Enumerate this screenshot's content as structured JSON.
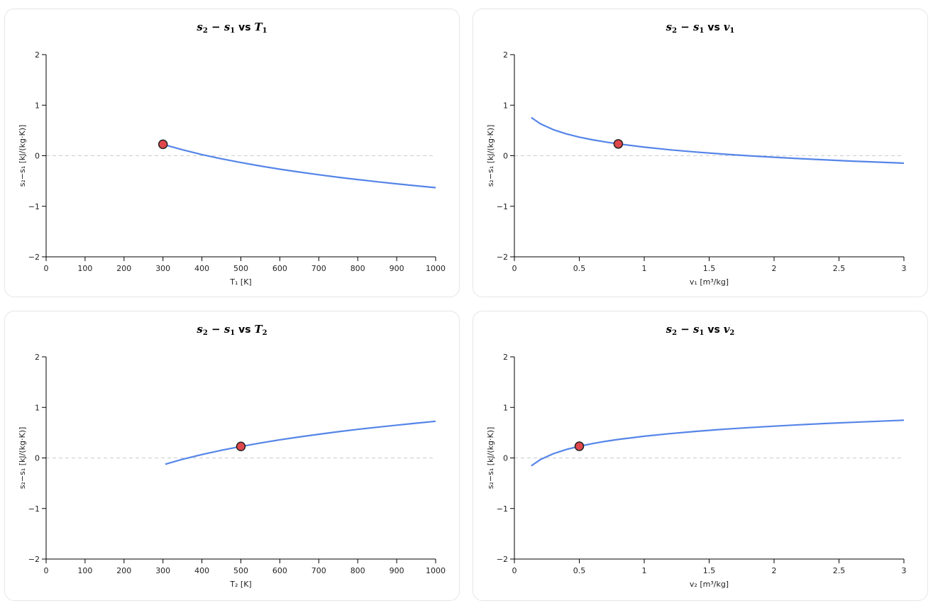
{
  "chart_data": [
    {
      "type": "line",
      "title_parts": [
        "s",
        "2",
        " − ",
        "s",
        "1",
        " vs ",
        "T",
        "1"
      ],
      "xlabel": "T₁ [K]",
      "ylabel": "s₂−s₁ [kJ/(kg·K)]",
      "xlim": [
        0,
        1000
      ],
      "ylim": [
        -2,
        2
      ],
      "xticks": [
        "0",
        "100",
        "200",
        "300",
        "400",
        "500",
        "600",
        "700",
        "800",
        "900",
        "1000"
      ],
      "yticks": [
        "−2",
        "−1",
        "0",
        "1",
        "2"
      ],
      "reference_line_y": 0,
      "series": [
        {
          "color": "#5585e8",
          "x": [
            300,
            350,
            400,
            450,
            500,
            550,
            600,
            650,
            700,
            750,
            800,
            850,
            900,
            950,
            1000
          ],
          "y": [
            0.226,
            0.118,
            0.023,
            -0.061,
            -0.135,
            -0.204,
            -0.266,
            -0.323,
            -0.376,
            -0.426,
            -0.472,
            -0.515,
            -0.556,
            -0.595,
            -0.632
          ]
        }
      ],
      "marker": {
        "x": 300,
        "y": 0.226,
        "color": "#e0474c"
      }
    },
    {
      "type": "line",
      "title_parts": [
        "s",
        "2",
        " − ",
        "s",
        "1",
        " vs ",
        "v",
        "1"
      ],
      "xlabel": "v₁ [m³/kg]",
      "ylabel": "s₂−s₁ [kJ/(kg·K)]",
      "xlim": [
        0,
        3
      ],
      "ylim": [
        -2,
        2
      ],
      "xticks": [
        "0",
        "0.5",
        "1",
        "1.5",
        "2",
        "2.5",
        "3"
      ],
      "yticks": [
        "−2",
        "−1",
        "0",
        "1",
        "2"
      ],
      "reference_line_y": 0,
      "series": [
        {
          "color": "#5585e8",
          "x": [
            0.13,
            0.2,
            0.3,
            0.4,
            0.5,
            0.6,
            0.7,
            0.8,
            1.0,
            1.2,
            1.4,
            1.6,
            1.8,
            2.0,
            2.2,
            2.4,
            2.6,
            2.8,
            3.0
          ],
          "y": [
            0.756,
            0.632,
            0.515,
            0.432,
            0.368,
            0.316,
            0.272,
            0.234,
            0.17,
            0.117,
            0.073,
            0.034,
            0.0,
            -0.03,
            -0.058,
            -0.083,
            -0.106,
            -0.127,
            -0.147
          ]
        }
      ],
      "marker": {
        "x": 0.8,
        "y": 0.234,
        "color": "#e0474c"
      }
    },
    {
      "type": "line",
      "title_parts": [
        "s",
        "2",
        " − ",
        "s",
        "1",
        " vs ",
        "T",
        "2"
      ],
      "xlabel": "T₂ [K]",
      "ylabel": "s₂−s₁ [kJ/(kg·K)]",
      "xlim": [
        0,
        1000
      ],
      "ylim": [
        -2,
        2
      ],
      "xticks": [
        "0",
        "100",
        "200",
        "300",
        "400",
        "500",
        "600",
        "700",
        "800",
        "900",
        "1000"
      ],
      "yticks": [
        "−2",
        "−1",
        "0",
        "1",
        "2"
      ],
      "reference_line_y": 0,
      "series": [
        {
          "color": "#5585e8",
          "x": [
            306,
            350,
            400,
            450,
            500,
            550,
            600,
            650,
            700,
            750,
            800,
            850,
            900,
            950,
            1000
          ],
          "y": [
            -0.124,
            -0.027,
            0.068,
            0.152,
            0.228,
            0.296,
            0.359,
            0.416,
            0.469,
            0.519,
            0.565,
            0.608,
            0.649,
            0.688,
            0.725
          ]
        }
      ],
      "marker": {
        "x": 500,
        "y": 0.228,
        "color": "#e0474c"
      }
    },
    {
      "type": "line",
      "title_parts": [
        "s",
        "2",
        " − ",
        "s",
        "1",
        " vs ",
        "v",
        "2"
      ],
      "xlabel": "v₂ [m³/kg]",
      "ylabel": "s₂−s₁ [kJ/(kg·K)]",
      "xlim": [
        0,
        3
      ],
      "ylim": [
        -2,
        2
      ],
      "xticks": [
        "0",
        "0.5",
        "1",
        "1.5",
        "2",
        "2.5",
        "3"
      ],
      "yticks": [
        "−2",
        "−1",
        "0",
        "1",
        "2"
      ],
      "reference_line_y": 0,
      "series": [
        {
          "color": "#5585e8",
          "x": [
            0.13,
            0.2,
            0.3,
            0.4,
            0.5,
            0.6,
            0.7,
            0.8,
            1.0,
            1.2,
            1.4,
            1.6,
            1.8,
            2.0,
            2.2,
            2.4,
            2.6,
            2.8,
            3.0
          ],
          "y": [
            -0.156,
            -0.032,
            0.084,
            0.167,
            0.231,
            0.284,
            0.328,
            0.366,
            0.43,
            0.482,
            0.527,
            0.565,
            0.599,
            0.629,
            0.657,
            0.682,
            0.705,
            0.726,
            0.746
          ]
        }
      ],
      "marker": {
        "x": 0.5,
        "y": 0.231,
        "color": "#e0474c"
      }
    }
  ]
}
